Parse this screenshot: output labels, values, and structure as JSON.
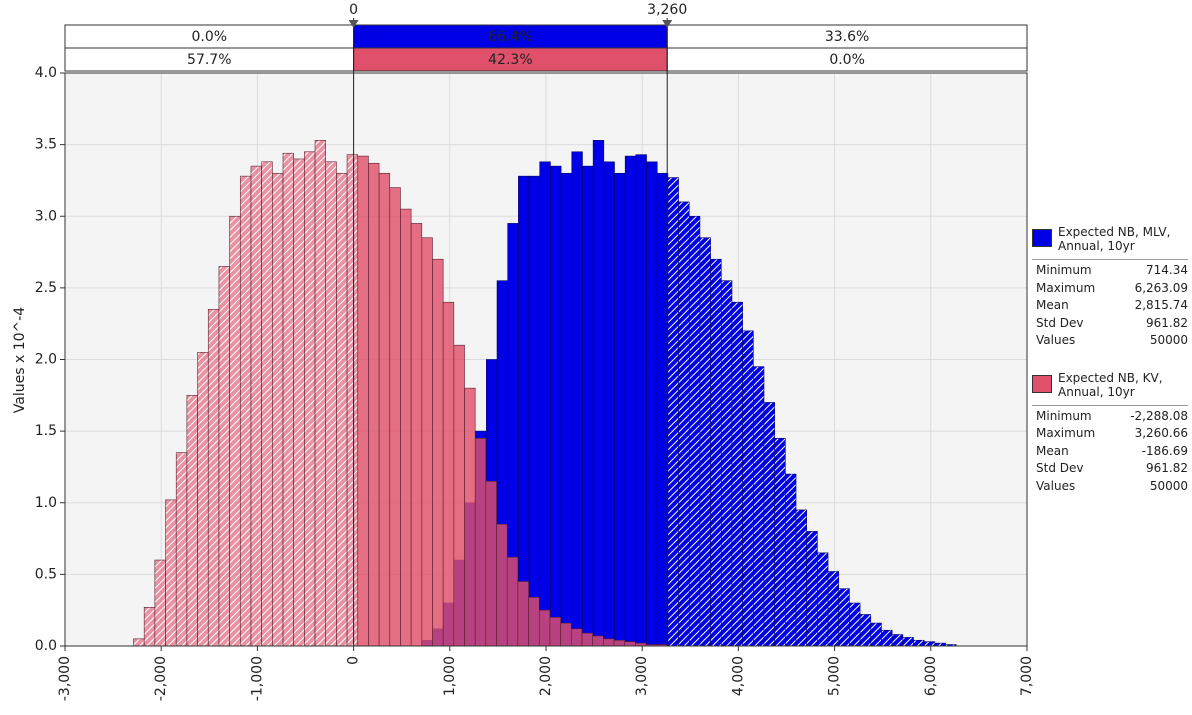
{
  "chart_data": {
    "type": "histogram",
    "ylabel": "Values x 10^-4",
    "xlim": [
      -3000,
      7000
    ],
    "xticks": [
      {
        "value": -3000,
        "label": "-3,000"
      },
      {
        "value": -2000,
        "label": "-2,000"
      },
      {
        "value": -1000,
        "label": "-1,000"
      },
      0,
      {
        "value": 1000,
        "label": "1,000"
      },
      {
        "value": 2000,
        "label": "2,000"
      },
      {
        "value": 3000,
        "label": "3,000"
      },
      {
        "value": 4000,
        "label": "4,000"
      },
      {
        "value": 5000,
        "label": "5,000"
      },
      {
        "value": 6000,
        "label": "6,000"
      },
      {
        "value": 7000,
        "label": "7,000"
      }
    ],
    "ylim": [
      0,
      4
    ],
    "yticks": [
      {
        "value": 0,
        "label": "0.0"
      },
      0.5,
      {
        "value": 1,
        "label": "1.0"
      },
      1.5,
      {
        "value": 2,
        "label": "2.0"
      },
      2.5,
      {
        "value": 3,
        "label": "3.0"
      },
      3.5,
      {
        "value": 4,
        "label": "4.0"
      }
    ],
    "grid": true,
    "delimiters": [
      0,
      {
        "value": 3260,
        "label": "3,260"
      }
    ],
    "series": [
      {
        "name": "Expected NB, MLV, Annual, 10yr",
        "color": "#0000e6",
        "bins": [
          714,
          825,
          936,
          1047,
          1158,
          1269,
          1380,
          1491,
          1602,
          1713,
          1824,
          1935,
          2046,
          2157,
          2268,
          2379,
          2490,
          2601,
          2712,
          2823,
          2934,
          3045,
          3156,
          3267,
          3378,
          3489,
          3600,
          3711,
          3822,
          3933,
          4044,
          4155,
          4266,
          4377,
          4488,
          4599,
          4710,
          4821,
          4932,
          5043,
          5154,
          5265,
          5376,
          5487,
          5598,
          5709,
          5820,
          5931,
          6042,
          6153,
          6264
        ],
        "values": [
          0.04,
          0.12,
          0.3,
          0.6,
          1.0,
          1.5,
          2.0,
          2.55,
          2.95,
          3.28,
          3.28,
          3.38,
          3.35,
          3.3,
          3.45,
          3.35,
          3.53,
          3.38,
          3.3,
          3.42,
          3.43,
          3.38,
          3.3,
          3.27,
          3.1,
          3.0,
          2.85,
          2.7,
          2.55,
          2.4,
          2.2,
          1.95,
          1.7,
          1.45,
          1.2,
          0.95,
          0.8,
          0.65,
          0.52,
          0.4,
          0.3,
          0.22,
          0.16,
          0.11,
          0.08,
          0.06,
          0.04,
          0.03,
          0.02,
          0.01
        ],
        "region_shares": {
          "values": [
            0.0,
            66.4,
            33.6
          ],
          "value_labels": [
            "0.0%",
            "66.4%",
            "33.6%"
          ]
        },
        "stats": {
          "names": [
            "Minimum",
            "Maximum",
            "Mean",
            "Std Dev",
            "Values"
          ],
          "values": [
            714.34,
            6263.09,
            2815.74,
            961.82,
            50000
          ],
          "value_labels": [
            "714.34",
            "6,263.09",
            "2,815.74",
            "961.82",
            "50000"
          ]
        }
      },
      {
        "name": "Expected NB, KV, Annual, 10yr",
        "color": "#e0506a",
        "bins": [
          -2288,
          -2177,
          -2066,
          -1955,
          -1844,
          -1733,
          -1622,
          -1511,
          -1400,
          -1289,
          -1178,
          -1067,
          -956,
          -845,
          -734,
          -623,
          -512,
          -401,
          -290,
          -179,
          -68,
          43,
          154,
          265,
          376,
          487,
          598,
          709,
          820,
          931,
          1042,
          1153,
          1264,
          1375,
          1486,
          1597,
          1708,
          1819,
          1930,
          2041,
          2152,
          2263,
          2374,
          2485,
          2596,
          2707,
          2818,
          2929,
          3040,
          3151,
          3262
        ],
        "values": [
          0.05,
          0.27,
          0.6,
          1.02,
          1.35,
          1.75,
          2.05,
          2.35,
          2.65,
          3.0,
          3.28,
          3.35,
          3.38,
          3.3,
          3.44,
          3.4,
          3.45,
          3.53,
          3.38,
          3.3,
          3.43,
          3.42,
          3.37,
          3.3,
          3.2,
          3.05,
          2.95,
          2.85,
          2.7,
          2.4,
          2.1,
          1.8,
          1.45,
          1.15,
          0.85,
          0.62,
          0.45,
          0.34,
          0.25,
          0.2,
          0.16,
          0.12,
          0.09,
          0.07,
          0.05,
          0.04,
          0.03,
          0.02,
          0.01,
          0.01
        ],
        "region_shares": {
          "values": [
            57.7,
            42.3,
            0.0
          ],
          "value_labels": [
            "57.7%",
            "42.3%",
            "0.0%"
          ]
        },
        "stats": {
          "names": [
            "Minimum",
            "Maximum",
            "Mean",
            "Std Dev",
            "Values"
          ],
          "values": [
            -2288.08,
            3260.66,
            -186.69,
            961.82,
            50000
          ],
          "value_labels": [
            "-2,288.08",
            "3,260.66",
            "-186.69",
            "961.82",
            "50000"
          ]
        }
      }
    ]
  }
}
